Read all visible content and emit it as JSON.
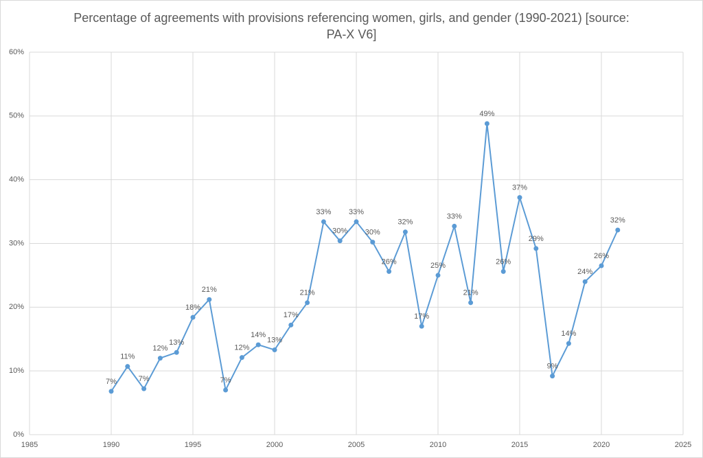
{
  "chart_data": {
    "type": "line",
    "title": "Percentage of agreements with provisions referencing women, girls, and gender (1990-2021) [source: PA-X V6]",
    "x": [
      1990,
      1991,
      1992,
      1993,
      1994,
      1995,
      1996,
      1997,
      1998,
      1999,
      2000,
      2001,
      2002,
      2003,
      2004,
      2005,
      2006,
      2007,
      2008,
      2009,
      2010,
      2011,
      2012,
      2013,
      2014,
      2015,
      2016,
      2017,
      2018,
      2019,
      2020,
      2021
    ],
    "values": [
      6.8,
      10.7,
      7.2,
      12.0,
      12.9,
      18.4,
      21.2,
      7.0,
      12.1,
      14.1,
      13.3,
      17.2,
      20.7,
      33.4,
      30.4,
      33.4,
      30.2,
      25.6,
      31.8,
      17.0,
      25.0,
      32.7,
      20.7,
      48.8,
      25.6,
      37.2,
      29.2,
      9.2,
      14.3,
      24.0,
      26.5,
      32.1
    ],
    "value_labels": [
      "7%",
      "11%",
      "7%",
      "12%",
      "13%",
      "18%",
      "21%",
      "7%",
      "12%",
      "14%",
      "13%",
      "17%",
      "21%",
      "33%",
      "30%",
      "33%",
      "30%",
      "26%",
      "32%",
      "17%",
      "25%",
      "33%",
      "21%",
      "49%",
      "26%",
      "37%",
      "29%",
      "9%",
      "14%",
      "24%",
      "26%",
      "32%"
    ],
    "color": "#5b9bd5",
    "xlim": [
      1985,
      2025
    ],
    "xticks": [
      1985,
      1990,
      1995,
      2000,
      2005,
      2010,
      2015,
      2020,
      2025
    ],
    "ylim": [
      0,
      60
    ],
    "yticks": [
      {
        "value": 0,
        "label": "0%"
      },
      {
        "value": 10,
        "label": "10%"
      },
      {
        "value": 20,
        "label": "20%"
      },
      {
        "value": 30,
        "label": "30%"
      },
      {
        "value": 40,
        "label": "40%"
      },
      {
        "value": 50,
        "label": "50%"
      },
      {
        "value": 60,
        "label": "60%"
      }
    ],
    "grid": true
  }
}
